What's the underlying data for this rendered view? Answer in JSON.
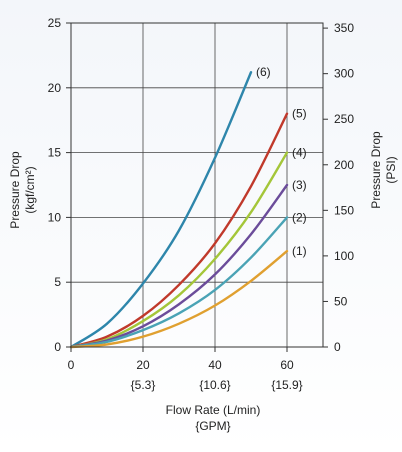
{
  "chart_data": {
    "type": "line",
    "x_axis": {
      "label": "Flow Rate (L/min)",
      "secondary_label": "{GPM}",
      "range": [
        0,
        70
      ],
      "ticks": [
        0,
        20,
        40,
        60
      ],
      "secondary_ticks": [
        {
          "x": 20,
          "label": "{5.3}"
        },
        {
          "x": 40,
          "label": "{10.6}"
        },
        {
          "x": 60,
          "label": "{15.9}"
        }
      ]
    },
    "y_axis_left": {
      "label_line1": "Pressure Drop",
      "label_line2": "(kgf/cm²)",
      "range": [
        0,
        25
      ],
      "ticks": [
        0,
        5,
        10,
        15,
        20,
        25
      ]
    },
    "y_axis_right": {
      "label_line1": "Pressure Drop",
      "label_line2": "(PSI)",
      "range": [
        0,
        355.6
      ],
      "ticks": [
        0,
        50,
        100,
        150,
        200,
        250,
        300,
        350
      ]
    },
    "grid": true,
    "series": [
      {
        "name": "(6)",
        "color": "#2e86ab",
        "x": [
          0,
          10,
          20,
          30,
          40,
          50
        ],
        "y": [
          0,
          1.8,
          4.9,
          9.0,
          14.6,
          21.2
        ]
      },
      {
        "name": "(5)",
        "color": "#c0392b",
        "x": [
          0,
          10,
          20,
          30,
          40,
          50,
          60
        ],
        "y": [
          0,
          0.8,
          2.4,
          4.8,
          8.0,
          12.4,
          18.0
        ]
      },
      {
        "name": "(4)",
        "color": "#a4c639",
        "x": [
          0,
          10,
          20,
          30,
          40,
          50,
          60
        ],
        "y": [
          0,
          0.6,
          2.0,
          4.0,
          6.8,
          10.4,
          15.0
        ]
      },
      {
        "name": "(3)",
        "color": "#6b4c9a",
        "x": [
          0,
          10,
          20,
          30,
          40,
          50,
          60
        ],
        "y": [
          0,
          0.5,
          1.6,
          3.3,
          5.6,
          8.7,
          12.5
        ]
      },
      {
        "name": "(2)",
        "color": "#4aa3b5",
        "x": [
          0,
          10,
          20,
          30,
          40,
          50,
          60
        ],
        "y": [
          0,
          0.4,
          1.3,
          2.6,
          4.4,
          6.9,
          10.0
        ]
      },
      {
        "name": "(1)",
        "color": "#e0a030",
        "x": [
          0,
          10,
          20,
          30,
          40,
          50,
          60
        ],
        "y": [
          0,
          0.2,
          0.8,
          1.8,
          3.2,
          5.1,
          7.4
        ]
      }
    ]
  }
}
